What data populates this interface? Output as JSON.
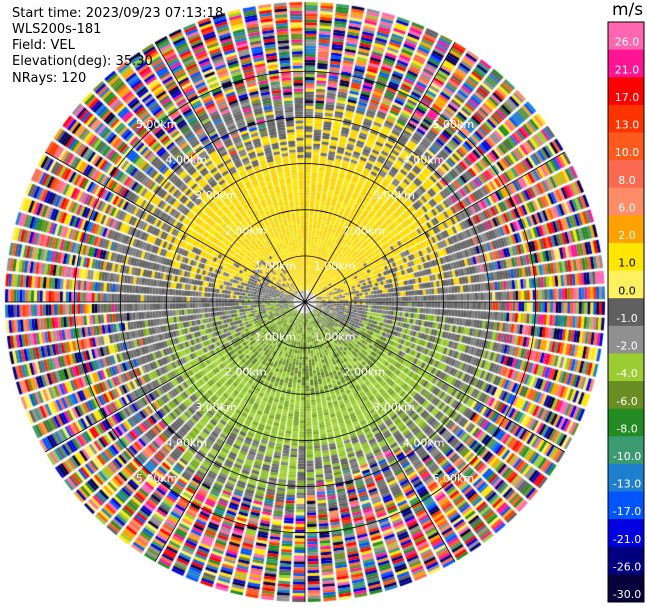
{
  "header": {
    "start_time": "Start time: 2023/09/23 07:13:18",
    "instrument": "WLS200s-181",
    "field": "Field: VEL",
    "elevation": "Elevation(deg): 35.30",
    "nrays": "NRays: 120"
  },
  "chart_data": {
    "type": "heatmap",
    "subtype": "ppi-polar",
    "nrays": 120,
    "max_range_km": 6.5,
    "range_rings_km": [
      1,
      2,
      3,
      4,
      5
    ],
    "ring_labels": [
      "1.00km",
      "2.00km",
      "3.00km",
      "4.00km",
      "5.00km"
    ],
    "spokes_deg": [
      0,
      30,
      60,
      90,
      120,
      150,
      180,
      210,
      240,
      270,
      300,
      330
    ],
    "colorbar": {
      "unit": "m/s",
      "tick_labels": [
        "26.0",
        "21.0",
        "17.0",
        "13.0",
        "10.0",
        "8.0",
        "6.0",
        "2.0",
        "1.0",
        "0.0",
        "-1.0",
        "-2.0",
        "-4.0",
        "-6.0",
        "-8.0",
        "-10.0",
        "-13.0",
        "-17.0",
        "-21.0",
        "-26.0",
        "-30.0"
      ],
      "colors": [
        "#ff66b2",
        "#ff1493",
        "#ff0000",
        "#ff3300",
        "#ff5a1e",
        "#fa6a50",
        "#ff8c66",
        "#ffa200",
        "#ffe600",
        "#fff060",
        "#606060",
        "#909090",
        "#9acd32",
        "#6b8e23",
        "#228b22",
        "#3a9a70",
        "#1e7fd0",
        "#0055ff",
        "#0000e0",
        "#000080",
        "#08003a"
      ]
    },
    "regions": [
      {
        "name": "positive-velocity",
        "range_km": [
          0.3,
          4.0
        ],
        "bearing_deg": [
          270,
          80
        ],
        "value_ms": 2.0
      },
      {
        "name": "negative-velocity",
        "range_km": [
          0.3,
          4.0
        ],
        "bearing_deg": [
          100,
          250
        ],
        "value_ms": -2.0
      },
      {
        "name": "near-zero",
        "range_km": [
          0.0,
          4.1
        ],
        "value_ms": 0.0
      },
      {
        "name": "noise",
        "range_km": [
          4.0,
          6.5
        ],
        "value_ms": "random"
      }
    ]
  }
}
